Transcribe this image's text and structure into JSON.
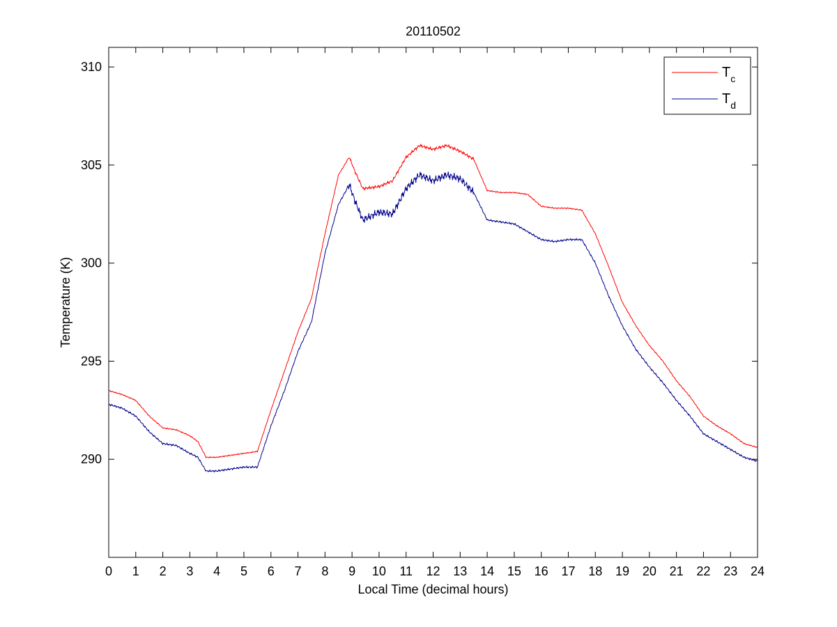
{
  "chart_data": {
    "type": "line",
    "title": "20110502",
    "xlabel": "Local Time (decimal hours)",
    "ylabel": "Temperature (K)",
    "xlim": [
      0,
      24
    ],
    "ylim": [
      285,
      311
    ],
    "xticks": [
      0,
      1,
      2,
      3,
      4,
      5,
      6,
      7,
      8,
      9,
      10,
      11,
      12,
      13,
      14,
      15,
      16,
      17,
      18,
      19,
      20,
      21,
      22,
      23,
      24
    ],
    "yticks": [
      290,
      295,
      300,
      305,
      310
    ],
    "grid": false,
    "legend_position": "top-right",
    "series": [
      {
        "name": "T",
        "subscript": "c",
        "color": "#ff0000",
        "points": [
          [
            0.0,
            293.5
          ],
          [
            0.5,
            293.3
          ],
          [
            1.0,
            293.0
          ],
          [
            1.5,
            292.2
          ],
          [
            2.0,
            291.6
          ],
          [
            2.5,
            291.5
          ],
          [
            3.0,
            291.2
          ],
          [
            3.3,
            290.9
          ],
          [
            3.6,
            290.1
          ],
          [
            4.0,
            290.1
          ],
          [
            4.5,
            290.2
          ],
          [
            5.0,
            290.3
          ],
          [
            5.5,
            290.4
          ],
          [
            6.0,
            292.5
          ],
          [
            6.5,
            294.5
          ],
          [
            7.0,
            296.5
          ],
          [
            7.5,
            298.2
          ],
          [
            8.0,
            301.5
          ],
          [
            8.5,
            304.5
          ],
          [
            8.9,
            305.4
          ],
          [
            9.1,
            304.7
          ],
          [
            9.4,
            303.8
          ],
          [
            10.0,
            303.9
          ],
          [
            10.5,
            304.2
          ],
          [
            11.0,
            305.4
          ],
          [
            11.5,
            306.0
          ],
          [
            12.0,
            305.8
          ],
          [
            12.5,
            306.0
          ],
          [
            13.0,
            305.7
          ],
          [
            13.5,
            305.3
          ],
          [
            14.0,
            303.7
          ],
          [
            14.5,
            303.6
          ],
          [
            15.0,
            303.6
          ],
          [
            15.5,
            303.5
          ],
          [
            16.0,
            302.9
          ],
          [
            16.5,
            302.8
          ],
          [
            17.0,
            302.8
          ],
          [
            17.5,
            302.7
          ],
          [
            18.0,
            301.5
          ],
          [
            18.5,
            299.8
          ],
          [
            19.0,
            298.0
          ],
          [
            19.5,
            296.8
          ],
          [
            20.0,
            295.8
          ],
          [
            20.5,
            295.0
          ],
          [
            21.0,
            294.0
          ],
          [
            21.5,
            293.2
          ],
          [
            22.0,
            292.2
          ],
          [
            22.5,
            291.7
          ],
          [
            23.0,
            291.3
          ],
          [
            23.5,
            290.8
          ],
          [
            24.0,
            290.6
          ]
        ]
      },
      {
        "name": "T",
        "subscript": "d",
        "color": "#00008b",
        "points": [
          [
            0.0,
            292.8
          ],
          [
            0.5,
            292.6
          ],
          [
            1.0,
            292.2
          ],
          [
            1.5,
            291.4
          ],
          [
            2.0,
            290.8
          ],
          [
            2.5,
            290.7
          ],
          [
            3.0,
            290.3
          ],
          [
            3.3,
            290.1
          ],
          [
            3.6,
            289.4
          ],
          [
            4.0,
            289.4
          ],
          [
            4.5,
            289.5
          ],
          [
            5.0,
            289.6
          ],
          [
            5.5,
            289.6
          ],
          [
            6.0,
            291.7
          ],
          [
            6.5,
            293.5
          ],
          [
            7.0,
            295.5
          ],
          [
            7.5,
            297.0
          ],
          [
            8.0,
            300.5
          ],
          [
            8.5,
            303.0
          ],
          [
            8.9,
            304.0
          ],
          [
            9.1,
            303.2
          ],
          [
            9.4,
            302.2
          ],
          [
            10.0,
            302.6
          ],
          [
            10.5,
            302.5
          ],
          [
            11.0,
            303.8
          ],
          [
            11.5,
            304.5
          ],
          [
            12.0,
            304.2
          ],
          [
            12.5,
            304.5
          ],
          [
            13.0,
            304.3
          ],
          [
            13.5,
            303.6
          ],
          [
            14.0,
            302.2
          ],
          [
            14.5,
            302.1
          ],
          [
            15.0,
            302.0
          ],
          [
            15.5,
            301.6
          ],
          [
            16.0,
            301.2
          ],
          [
            16.5,
            301.1
          ],
          [
            17.0,
            301.2
          ],
          [
            17.5,
            301.2
          ],
          [
            18.0,
            300.0
          ],
          [
            18.5,
            298.3
          ],
          [
            19.0,
            296.8
          ],
          [
            19.5,
            295.6
          ],
          [
            20.0,
            294.7
          ],
          [
            20.5,
            293.9
          ],
          [
            21.0,
            293.0
          ],
          [
            21.5,
            292.2
          ],
          [
            22.0,
            291.3
          ],
          [
            22.5,
            290.9
          ],
          [
            23.0,
            290.5
          ],
          [
            23.5,
            290.1
          ],
          [
            24.0,
            289.9
          ]
        ]
      }
    ]
  }
}
